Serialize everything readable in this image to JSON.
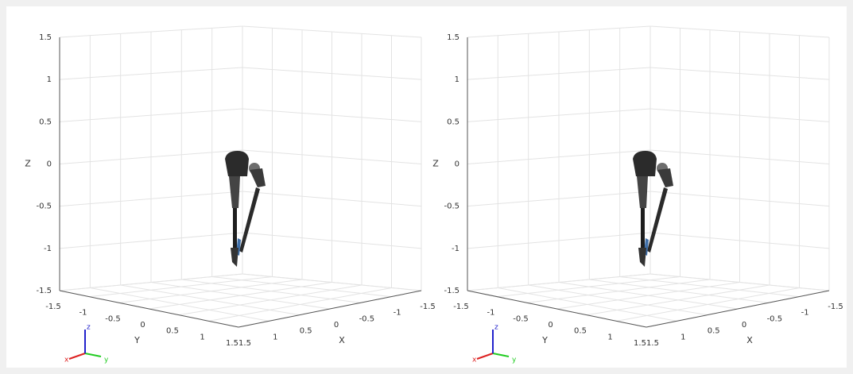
{
  "chart_data": [
    {
      "type": "axes3d",
      "xlabel": "X",
      "ylabel": "Y",
      "zlabel": "Z",
      "xlim": [
        -1.5,
        1.5
      ],
      "ylim": [
        -1.5,
        1.5
      ],
      "zlim": [
        -1.5,
        1.5
      ],
      "xticks": [
        -1.5,
        -1,
        -0.5,
        0,
        0.5,
        1,
        1.5
      ],
      "yticks": [
        -1.5,
        -1,
        -0.5,
        0,
        0.5,
        1,
        1.5
      ],
      "zticks": [
        -1.5,
        -1,
        -0.5,
        0,
        0.5,
        1,
        1.5
      ],
      "grid": true,
      "orientation_axes": [
        "x",
        "y",
        "z"
      ]
    },
    {
      "type": "axes3d",
      "xlabel": "X",
      "ylabel": "Y",
      "zlabel": "Z",
      "xlim": [
        -1.5,
        1.5
      ],
      "ylim": [
        -1.5,
        1.5
      ],
      "zlim": [
        -1.5,
        1.5
      ],
      "xticks": [
        -1.5,
        -1,
        -0.5,
        0,
        0.5,
        1,
        1.5
      ],
      "yticks": [
        -1.5,
        -1,
        -0.5,
        0,
        0.5,
        1,
        1.5
      ],
      "zticks": [
        -1.5,
        -1,
        -0.5,
        0,
        0.5,
        1,
        1.5
      ],
      "grid": true,
      "orientation_axes": [
        "x",
        "y",
        "z"
      ]
    }
  ]
}
